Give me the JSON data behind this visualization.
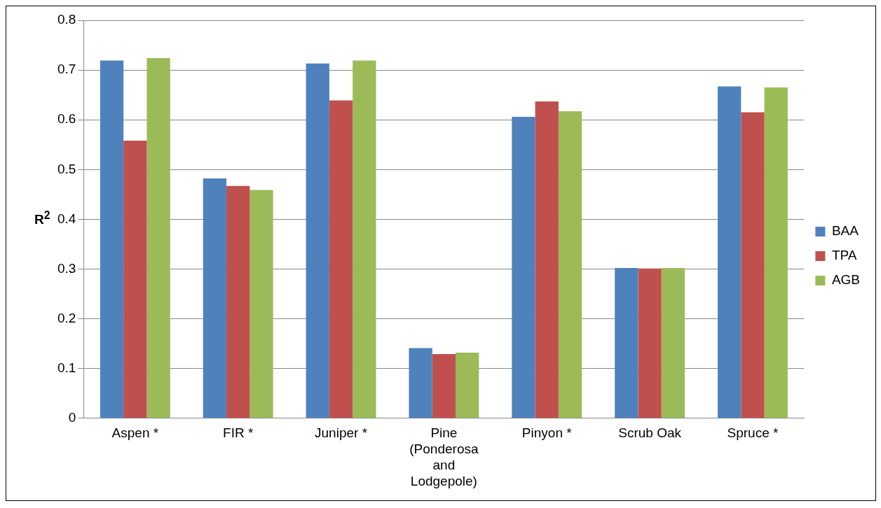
{
  "chart_data": {
    "type": "bar",
    "ylabel": "R$^{2}$",
    "categories": [
      "Aspen *",
      "FIR *",
      "Juniper *",
      "Pine (Ponderosa and Lodgepole)",
      "Pinyon *",
      "Scrub Oak",
      "Spruce *"
    ],
    "series": [
      {
        "name": "BAA",
        "color": "#4f81bd",
        "values": [
          0.719,
          0.482,
          0.713,
          0.141,
          0.606,
          0.302,
          0.667
        ]
      },
      {
        "name": "TPA",
        "color": "#c0504d",
        "values": [
          0.558,
          0.467,
          0.639,
          0.129,
          0.637,
          0.301,
          0.615
        ]
      },
      {
        "name": "AGB",
        "color": "#9bbb59",
        "values": [
          0.724,
          0.459,
          0.719,
          0.132,
          0.617,
          0.302,
          0.665
        ]
      }
    ],
    "ylim": [
      0,
      0.8
    ],
    "yticks": [
      0,
      0.1,
      0.2,
      0.3,
      0.4,
      0.5,
      0.6,
      0.7,
      0.8
    ],
    "grid": "y",
    "legend": "right"
  }
}
